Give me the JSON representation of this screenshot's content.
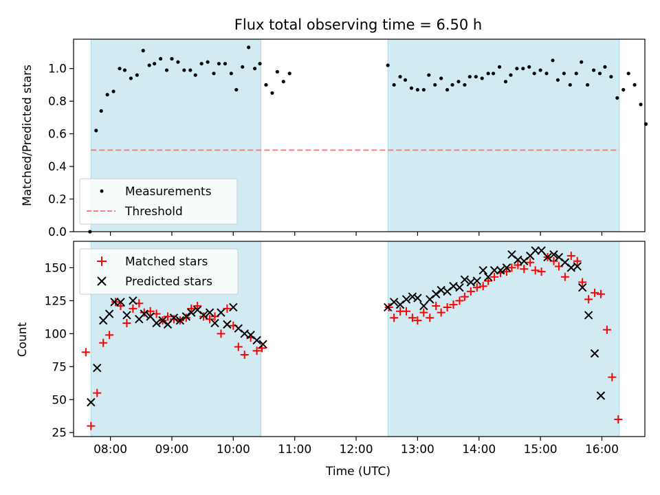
{
  "title": "Flux total observing time = 6.50 h",
  "xlabel": "Time (UTC)",
  "x_ticks": [
    "08:00",
    "09:00",
    "10:00",
    "11:00",
    "12:00",
    "13:00",
    "14:00",
    "15:00",
    "16:00"
  ],
  "colors": {
    "shade": "#add8e6",
    "measurements": "#000000",
    "threshold": "#f08080",
    "matched": "#ff0000",
    "predicted": "#000000"
  },
  "chart_data": [
    {
      "type": "scatter",
      "title": "Flux total observing time = 6.50 h",
      "xlabel": "",
      "ylabel": "Matched/Predicted stars",
      "x_unit": "time (UTC)",
      "xlim": [
        "07:24",
        "16:42"
      ],
      "ylim": [
        0.0,
        1.18
      ],
      "y_ticks": [
        "0.0",
        "0.2",
        "0.4",
        "0.6",
        "0.8",
        "1.0"
      ],
      "y_tick_values": [
        0.0,
        0.2,
        0.4,
        0.6,
        0.8,
        1.0
      ],
      "shaded_spans": [
        [
          "07:41",
          "10:27"
        ],
        [
          "12:31",
          "16:17"
        ]
      ],
      "legend_position": "lower-left",
      "threshold": {
        "name": "Threshold",
        "y": 0.5,
        "x": [
          "07:41",
          "16:17"
        ],
        "style": "dashed"
      },
      "series": [
        {
          "name": "Measurements",
          "marker": "dot",
          "points": [
            [
              "07:40",
              0.0
            ],
            [
              "07:46",
              0.62
            ],
            [
              "07:51",
              0.74
            ],
            [
              "07:57",
              0.84
            ],
            [
              "08:03",
              0.86
            ],
            [
              "08:09",
              1.0
            ],
            [
              "08:14",
              0.99
            ],
            [
              "08:20",
              0.94
            ],
            [
              "08:26",
              0.96
            ],
            [
              "08:32",
              1.11
            ],
            [
              "08:38",
              1.02
            ],
            [
              "08:43",
              1.03
            ],
            [
              "08:49",
              1.06
            ],
            [
              "08:55",
              0.99
            ],
            [
              "09:00",
              1.06
            ],
            [
              "09:06",
              1.04
            ],
            [
              "09:12",
              0.99
            ],
            [
              "09:18",
              0.99
            ],
            [
              "09:23",
              0.96
            ],
            [
              "09:29",
              1.03
            ],
            [
              "09:35",
              1.04
            ],
            [
              "09:41",
              0.97
            ],
            [
              "09:46",
              1.03
            ],
            [
              "09:52",
              1.03
            ],
            [
              "09:58",
              0.97
            ],
            [
              "10:03",
              0.87
            ],
            [
              "10:09",
              1.01
            ],
            [
              "10:15",
              1.13
            ],
            [
              "10:21",
              1.0
            ],
            [
              "10:26",
              1.03
            ],
            [
              "10:32",
              0.9
            ],
            [
              "10:38",
              0.85
            ],
            [
              "10:43",
              0.98
            ],
            [
              "10:49",
              0.92
            ],
            [
              "10:55",
              0.97
            ],
            [
              "12:31",
              1.02
            ],
            [
              "12:37",
              0.9
            ],
            [
              "12:43",
              0.95
            ],
            [
              "12:48",
              0.93
            ],
            [
              "12:54",
              0.88
            ],
            [
              "13:00",
              0.87
            ],
            [
              "13:06",
              0.87
            ],
            [
              "13:11",
              0.96
            ],
            [
              "13:17",
              0.9
            ],
            [
              "13:23",
              0.94
            ],
            [
              "13:29",
              0.87
            ],
            [
              "13:34",
              0.9
            ],
            [
              "13:40",
              0.92
            ],
            [
              "13:46",
              0.9
            ],
            [
              "13:51",
              0.95
            ],
            [
              "13:57",
              0.95
            ],
            [
              "14:03",
              0.94
            ],
            [
              "14:09",
              0.97
            ],
            [
              "14:14",
              0.97
            ],
            [
              "14:20",
              1.01
            ],
            [
              "14:26",
              0.92
            ],
            [
              "14:31",
              0.96
            ],
            [
              "14:37",
              1.0
            ],
            [
              "14:43",
              1.0
            ],
            [
              "14:49",
              1.01
            ],
            [
              "14:54",
              0.97
            ],
            [
              "15:00",
              0.99
            ],
            [
              "15:06",
              0.97
            ],
            [
              "15:12",
              1.05
            ],
            [
              "15:17",
              0.93
            ],
            [
              "15:23",
              0.97
            ],
            [
              "15:29",
              0.9
            ],
            [
              "15:35",
              0.97
            ],
            [
              "15:40",
              1.04
            ],
            [
              "15:46",
              0.9
            ],
            [
              "15:52",
              0.99
            ],
            [
              "15:58",
              0.97
            ],
            [
              "16:03",
              1.01
            ],
            [
              "16:09",
              0.95
            ],
            [
              "16:15",
              0.82
            ],
            [
              "16:21",
              0.87
            ],
            [
              "16:26",
              0.97
            ],
            [
              "16:32",
              0.9
            ],
            [
              "16:38",
              0.78
            ],
            [
              "16:43",
              0.66
            ]
          ]
        }
      ]
    },
    {
      "type": "scatter",
      "title": "",
      "xlabel": "Time (UTC)",
      "ylabel": "Count",
      "x_unit": "time (UTC)",
      "xlim": [
        "07:24",
        "16:42"
      ],
      "ylim": [
        22,
        170
      ],
      "y_ticks": [
        "25",
        "50",
        "75",
        "100",
        "125",
        "150"
      ],
      "y_tick_values": [
        25,
        50,
        75,
        100,
        125,
        150
      ],
      "shaded_spans": [
        [
          "07:41",
          "10:27"
        ],
        [
          "12:31",
          "16:17"
        ]
      ],
      "legend_position": "upper-left",
      "series": [
        {
          "name": "Matched stars",
          "marker": "plus",
          "points": [
            [
              "07:36",
              86
            ],
            [
              "07:41",
              30
            ],
            [
              "07:47",
              55
            ],
            [
              "07:53",
              93
            ],
            [
              "07:59",
              99
            ],
            [
              "08:05",
              124
            ],
            [
              "08:10",
              121
            ],
            [
              "08:16",
              108
            ],
            [
              "08:22",
              119
            ],
            [
              "08:28",
              123
            ],
            [
              "08:33",
              116
            ],
            [
              "08:39",
              117
            ],
            [
              "08:45",
              115
            ],
            [
              "08:51",
              110
            ],
            [
              "08:56",
              113
            ],
            [
              "09:02",
              111
            ],
            [
              "09:08",
              110
            ],
            [
              "09:14",
              112
            ],
            [
              "09:19",
              119
            ],
            [
              "09:25",
              121
            ],
            [
              "09:31",
              113
            ],
            [
              "09:37",
              111
            ],
            [
              "09:42",
              113
            ],
            [
              "09:48",
              100
            ],
            [
              "09:54",
              119
            ],
            [
              "10:00",
              106
            ],
            [
              "10:05",
              90
            ],
            [
              "10:11",
              84
            ],
            [
              "10:17",
              97
            ],
            [
              "10:23",
              87
            ],
            [
              "10:28",
              89
            ],
            [
              "12:32",
              120
            ],
            [
              "12:37",
              112
            ],
            [
              "12:43",
              117
            ],
            [
              "12:49",
              117
            ],
            [
              "12:55",
              112
            ],
            [
              "13:00",
              110
            ],
            [
              "13:06",
              116
            ],
            [
              "13:12",
              112
            ],
            [
              "13:18",
              121
            ],
            [
              "13:23",
              116
            ],
            [
              "13:29",
              120
            ],
            [
              "13:35",
              122
            ],
            [
              "13:41",
              125
            ],
            [
              "13:46",
              128
            ],
            [
              "13:52",
              132
            ],
            [
              "13:58",
              135
            ],
            [
              "14:04",
              136
            ],
            [
              "14:09",
              140
            ],
            [
              "14:15",
              143
            ],
            [
              "14:21",
              146
            ],
            [
              "14:27",
              147
            ],
            [
              "14:32",
              150
            ],
            [
              "14:38",
              152
            ],
            [
              "14:44",
              149
            ],
            [
              "14:50",
              154
            ],
            [
              "14:55",
              148
            ],
            [
              "15:01",
              147
            ],
            [
              "15:07",
              158
            ],
            [
              "15:13",
              155
            ],
            [
              "15:18",
              151
            ],
            [
              "15:24",
              143
            ],
            [
              "15:30",
              159
            ],
            [
              "15:36",
              155
            ],
            [
              "15:41",
              139
            ],
            [
              "15:47",
              126
            ],
            [
              "15:53",
              131
            ],
            [
              "15:59",
              130
            ],
            [
              "16:05",
              103
            ],
            [
              "16:10",
              67
            ],
            [
              "16:16",
              35
            ]
          ]
        },
        {
          "name": "Predicted stars",
          "marker": "x",
          "points": [
            [
              "07:41",
              48
            ],
            [
              "07:47",
              74
            ],
            [
              "07:53",
              110
            ],
            [
              "07:59",
              115
            ],
            [
              "08:04",
              124
            ],
            [
              "08:10",
              124
            ],
            [
              "08:16",
              114
            ],
            [
              "08:22",
              125
            ],
            [
              "08:28",
              111
            ],
            [
              "08:33",
              115
            ],
            [
              "08:39",
              113
            ],
            [
              "08:45",
              108
            ],
            [
              "08:51",
              110
            ],
            [
              "08:56",
              107
            ],
            [
              "09:02",
              112
            ],
            [
              "09:08",
              110
            ],
            [
              "09:14",
              113
            ],
            [
              "09:19",
              116
            ],
            [
              "09:25",
              118
            ],
            [
              "09:31",
              114
            ],
            [
              "09:37",
              116
            ],
            [
              "09:42",
              108
            ],
            [
              "09:48",
              116
            ],
            [
              "09:54",
              107
            ],
            [
              "10:00",
              120
            ],
            [
              "10:05",
              104
            ],
            [
              "10:11",
              100
            ],
            [
              "10:17",
              99
            ],
            [
              "10:23",
              95
            ],
            [
              "10:29",
              92
            ],
            [
              "12:31",
              120
            ],
            [
              "12:37",
              124
            ],
            [
              "12:43",
              122
            ],
            [
              "12:49",
              126
            ],
            [
              "12:55",
              128
            ],
            [
              "13:00",
              127
            ],
            [
              "13:06",
              121
            ],
            [
              "13:12",
              126
            ],
            [
              "13:18",
              130
            ],
            [
              "13:23",
              133
            ],
            [
              "13:29",
              132
            ],
            [
              "13:35",
              136
            ],
            [
              "13:41",
              135
            ],
            [
              "13:46",
              141
            ],
            [
              "13:52",
              139
            ],
            [
              "13:58",
              140
            ],
            [
              "14:04",
              148
            ],
            [
              "14:09",
              143
            ],
            [
              "14:15",
              148
            ],
            [
              "14:21",
              148
            ],
            [
              "14:27",
              150
            ],
            [
              "14:32",
              160
            ],
            [
              "14:38",
              156
            ],
            [
              "14:44",
              155
            ],
            [
              "14:50",
              159
            ],
            [
              "14:55",
              163
            ],
            [
              "15:01",
              163
            ],
            [
              "15:07",
              158
            ],
            [
              "15:13",
              160
            ],
            [
              "15:18",
              158
            ],
            [
              "15:24",
              154
            ],
            [
              "15:30",
              150
            ],
            [
              "15:36",
              151
            ],
            [
              "15:41",
              135
            ],
            [
              "15:47",
              114
            ],
            [
              "15:53",
              85
            ],
            [
              "15:59",
              53
            ]
          ]
        }
      ]
    }
  ]
}
